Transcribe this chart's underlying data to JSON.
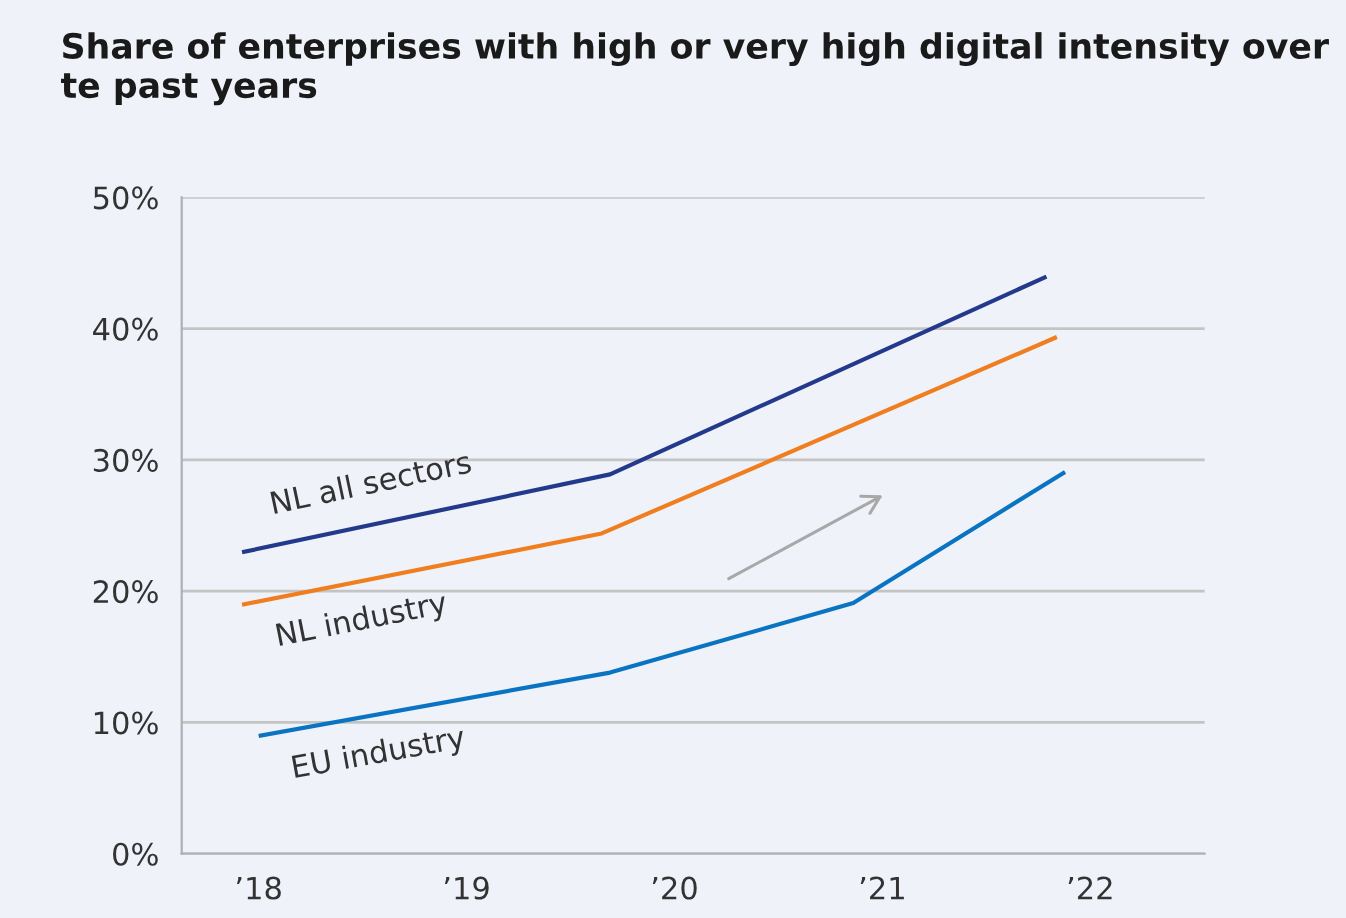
{
  "chart_data": {
    "type": "line",
    "title": "Share of enterprises with high or very high digital intensity over te past years",
    "series": [
      {
        "name": "NL all sectors",
        "color": "#233a8c",
        "x": [
          2017.93,
          2019.69,
          2021.78
        ],
        "values": [
          23.0,
          28.9,
          43.9
        ]
      },
      {
        "name": "NL industry",
        "color": "#f07d1e",
        "x": [
          2017.93,
          2019.65,
          2021.83
        ],
        "values": [
          19.0,
          24.4,
          39.3
        ]
      },
      {
        "name": "EU industry",
        "color": "#0a74c2",
        "x": [
          2018.01,
          2019.69,
          2020.86,
          2021.87
        ],
        "values": [
          9.0,
          13.8,
          19.1,
          29.0
        ]
      }
    ],
    "xlim": [
      2017.63,
      2022.55
    ],
    "xticks": [
      {
        "value": 2018,
        "label": "’18"
      },
      {
        "value": 2019,
        "label": "’19"
      },
      {
        "value": 2020,
        "label": "’20"
      },
      {
        "value": 2021,
        "label": "’21"
      },
      {
        "value": 2022,
        "label": "’22"
      }
    ],
    "ylim": [
      0,
      50
    ],
    "yticks": [
      {
        "value": 0,
        "label": "0%"
      },
      {
        "value": 10,
        "label": "10%"
      },
      {
        "value": 20,
        "label": "20%"
      },
      {
        "value": 30,
        "label": "30%"
      },
      {
        "value": 40,
        "label": "40%"
      },
      {
        "value": 50,
        "label": "50%"
      }
    ],
    "grid": "y",
    "legend": false,
    "marker": "none",
    "line_style": "solid"
  }
}
